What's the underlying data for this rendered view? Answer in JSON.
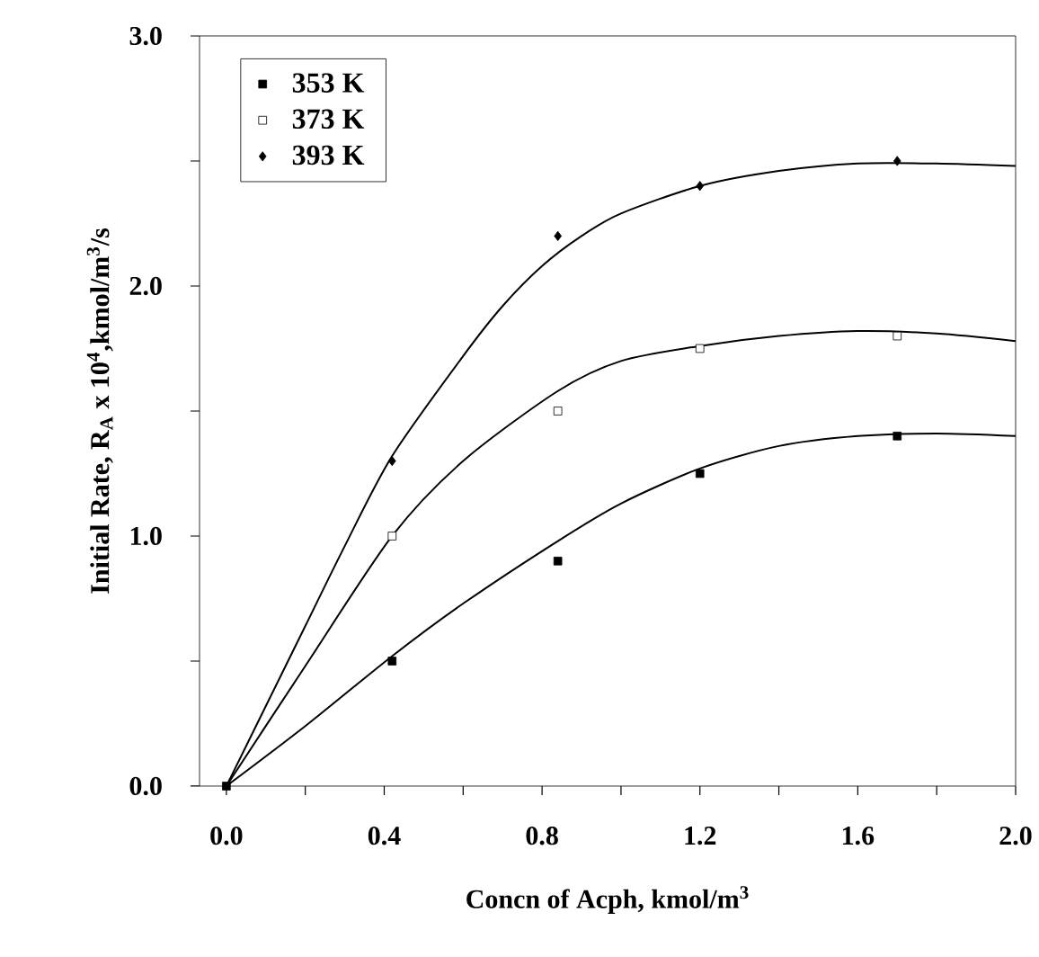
{
  "chart_data": {
    "type": "scatter",
    "xlabel": "Concn of Acph, kmol/m$^{3}$",
    "ylabel": "Initial Rate, R$_{A}$ x 10$^{4}$,kmol/m$^{3}$/s",
    "xlim": [
      -0.068,
      2.0
    ],
    "ylim": [
      0,
      3.0
    ],
    "xticks": [
      {
        "value": 0,
        "label": "0.0"
      },
      {
        "value": 0.2,
        "label": null
      },
      {
        "value": 0.4,
        "label": "0.4"
      },
      {
        "value": 0.6,
        "label": null
      },
      {
        "value": 0.8,
        "label": "0.8"
      },
      {
        "value": 1.0,
        "label": null
      },
      {
        "value": 1.2,
        "label": "1.2"
      },
      {
        "value": 1.4,
        "label": null
      },
      {
        "value": 1.6,
        "label": "1.6"
      },
      {
        "value": 1.8,
        "label": null
      },
      {
        "value": 2.0,
        "label": "2.0"
      }
    ],
    "yticks": [
      {
        "value": 0,
        "label": "0.0"
      },
      {
        "value": 0.5,
        "label": null
      },
      {
        "value": 1.0,
        "label": "1.0"
      },
      {
        "value": 1.5,
        "label": null
      },
      {
        "value": 2.0,
        "label": "2.0"
      },
      {
        "value": 2.5,
        "label": null
      },
      {
        "value": 3.0,
        "label": "3.0"
      }
    ],
    "legend": "top left",
    "series": [
      {
        "name": "353 K",
        "marker": "square",
        "color": "#000000",
        "x": [
          0,
          0.42,
          0.84,
          1.2,
          1.7
        ],
        "values": [
          0,
          0.5,
          0.9,
          1.25,
          1.4
        ]
      },
      {
        "name": "373 K",
        "marker": "square",
        "color": "#ffffff",
        "x": [
          0.42,
          0.84,
          1.2,
          1.7
        ],
        "values": [
          1.0,
          1.5,
          1.75,
          1.8
        ]
      },
      {
        "name": "393 K",
        "marker": "diamond",
        "color": "#000000",
        "x": [
          0.42,
          0.84,
          1.2,
          1.7
        ],
        "values": [
          1.3,
          2.2,
          2.4,
          2.5
        ]
      },
      {
        "type": "line",
        "marker": "none",
        "color": "#000000",
        "x": [
          0,
          0.2,
          0.42,
          0.6,
          0.84,
          1.0,
          1.2,
          1.4,
          1.6,
          1.8,
          2.0
        ],
        "values": [
          0,
          0.24,
          0.52,
          0.73,
          0.98,
          1.13,
          1.27,
          1.36,
          1.4,
          1.41,
          1.4
        ]
      },
      {
        "type": "line",
        "marker": "none",
        "color": "#000000",
        "x": [
          0,
          0.2,
          0.42,
          0.6,
          0.84,
          1.0,
          1.2,
          1.4,
          1.6,
          1.8,
          2.0
        ],
        "values": [
          0,
          0.48,
          1.0,
          1.3,
          1.58,
          1.7,
          1.76,
          1.8,
          1.82,
          1.81,
          1.78
        ]
      },
      {
        "type": "line",
        "marker": "none",
        "color": "#000000",
        "x": [
          0,
          0.1,
          0.2,
          0.3,
          0.42,
          0.6,
          0.7,
          0.8,
          0.9,
          1.0,
          1.2,
          1.4,
          1.6,
          1.8,
          2.0
        ],
        "values": [
          0,
          0.32,
          0.64,
          0.96,
          1.32,
          1.72,
          1.92,
          2.08,
          2.2,
          2.29,
          2.4,
          2.46,
          2.49,
          2.49,
          2.48
        ]
      }
    ]
  }
}
